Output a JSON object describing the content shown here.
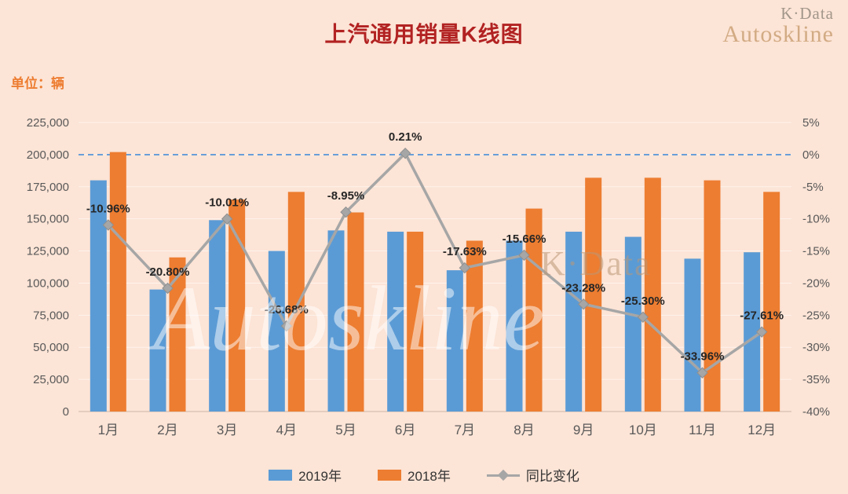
{
  "header": {
    "title": "上汽通用销量K线图",
    "unit_label": "单位：辆"
  },
  "branding": {
    "top_right_line1": "K·Data",
    "top_right_line2": "Autoskline",
    "watermark_small": "K·Data",
    "watermark_large": "Autoskline"
  },
  "colors": {
    "background": "#fce4d6",
    "title": "#b22222",
    "unit_label": "#ed7d31",
    "axis_text": "#595959",
    "bar_2019": "#5b9bd5",
    "bar_2018": "#ed7d31",
    "yoy_line": "#a6a6a6",
    "zero_dashed_line": "#4a90d9"
  },
  "legend": {
    "items": [
      {
        "label": "2019年",
        "color": "#5b9bd5",
        "marker": "square"
      },
      {
        "label": "2018年",
        "color": "#ed7d31",
        "marker": "square"
      },
      {
        "label": "同比变化",
        "color": "#a6a6a6",
        "marker": "line-diamond"
      }
    ]
  },
  "chart_data": {
    "type": "bar+line",
    "title": "上汽通用销量K线图",
    "unit": "辆",
    "categories": [
      "1月",
      "2月",
      "3月",
      "4月",
      "5月",
      "6月",
      "7月",
      "8月",
      "9月",
      "10月",
      "11月",
      "12月"
    ],
    "series": [
      {
        "name": "2019年",
        "type": "bar",
        "axis": "left",
        "color": "#5b9bd5",
        "values": [
          180000,
          95000,
          149000,
          125000,
          141000,
          140000,
          110000,
          133000,
          140000,
          136000,
          119000,
          124000
        ]
      },
      {
        "name": "2018年",
        "type": "bar",
        "axis": "left",
        "color": "#ed7d31",
        "values": [
          202000,
          120000,
          165000,
          171000,
          155000,
          140000,
          133000,
          158000,
          182000,
          182000,
          180000,
          171000
        ]
      },
      {
        "name": "同比变化",
        "type": "line",
        "axis": "right",
        "color": "#a6a6a6",
        "values": [
          -10.96,
          -20.8,
          -10.01,
          -26.68,
          -8.95,
          0.21,
          -17.63,
          -15.66,
          -23.28,
          -25.3,
          -33.96,
          -27.61
        ],
        "labels": [
          "-10.96%",
          "-20.80%",
          "-10.01%",
          "-26.68%",
          "-8.95%",
          "0.21%",
          "-17.63%",
          "-15.66%",
          "-23.28%",
          "-25.30%",
          "-33.96%",
          "-27.61%"
        ]
      }
    ],
    "left_axis": {
      "min": 0,
      "max": 225000,
      "step": 25000,
      "tick_labels": [
        "0",
        "25,000",
        "50,000",
        "75,000",
        "100,000",
        "125,000",
        "150,000",
        "175,000",
        "200,000",
        "225,000"
      ]
    },
    "right_axis": {
      "min": -40,
      "max": 5,
      "step": 5,
      "tick_labels": [
        "-40%",
        "-35%",
        "-30%",
        "-25%",
        "-20%",
        "-15%",
        "-10%",
        "-5%",
        "0%",
        "5%"
      ]
    },
    "zero_line": {
      "value": 0,
      "axis": "right",
      "style": "dashed",
      "color": "#4a90d9"
    },
    "grid": true,
    "legend_position": "bottom"
  }
}
